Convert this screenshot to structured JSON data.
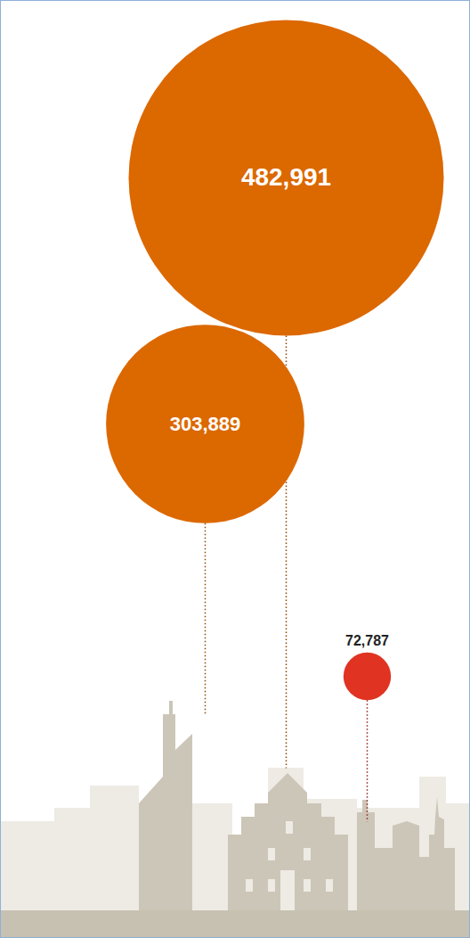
{
  "chart_data": {
    "type": "bubble",
    "values": [
      303889,
      482991,
      72787
    ],
    "value_labels": [
      "303,889",
      "482,991",
      "72,787"
    ],
    "colors": [
      "#dc6800",
      "#dc6800",
      "#e03322"
    ],
    "data_labels": true,
    "tick_labels": false
  }
}
